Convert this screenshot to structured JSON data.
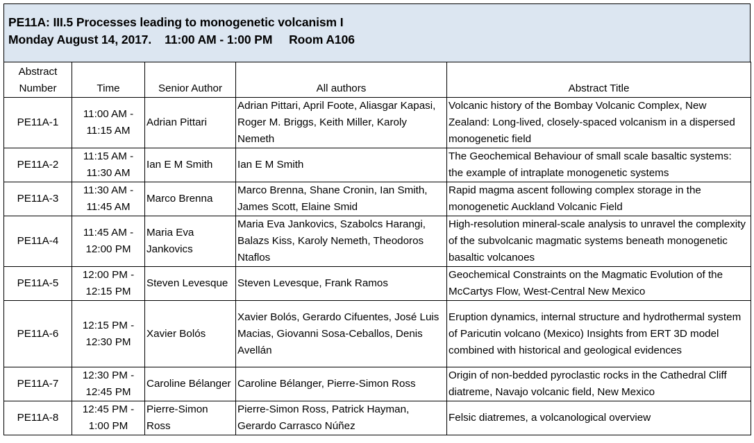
{
  "session": {
    "line1": "PE11A: III.5 Processes leading to monogenetic volcanism I",
    "line2": "Monday August 14, 2017.    11:00 AM - 1:00 PM     Room A106"
  },
  "columns": {
    "abstract_number": "Abstract Number",
    "time": "Time",
    "senior_author": "Senior Author",
    "all_authors": "All authors",
    "abstract_title": "Abstract Title"
  },
  "rows": [
    {
      "number": "PE11A-1",
      "time_start": "11:00 AM -",
      "time_end": "11:15 AM",
      "senior": "Adrian Pittari",
      "authors": "Adrian Pittari, April Foote, Aliasgar Kapasi, Roger M. Briggs, Keith Miller, Karoly Nemeth",
      "title": "Volcanic history of the Bombay Volcanic Complex, New Zealand: Long-lived, closely-spaced volcanism in a dispersed monogenetic field"
    },
    {
      "number": "PE11A-2",
      "time_start": "11:15 AM -",
      "time_end": "11:30 AM",
      "senior": "Ian E M Smith",
      "authors": "Ian E M Smith",
      "title": "The Geochemical Behaviour of small scale basaltic systems: the example of intraplate monogenetic systems"
    },
    {
      "number": "PE11A-3",
      "time_start": "11:30 AM -",
      "time_end": "11:45 AM",
      "senior": "Marco Brenna",
      "authors": "Marco Brenna, Shane Cronin, Ian Smith, James Scott, Elaine Smid",
      "title": "Rapid magma ascent following complex storage in the monogenetic Auckland Volcanic Field"
    },
    {
      "number": "PE11A-4",
      "time_start": "11:45 AM -",
      "time_end": "12:00 PM",
      "senior": "Maria Eva Jankovics",
      "authors": "Maria Eva Jankovics, Szabolcs Harangi, Balazs Kiss, Karoly Nemeth, Theodoros Ntaflos",
      "title": "High-resolution mineral-scale analysis to unravel the complexity of the subvolcanic magmatic systems beneath monogenetic basaltic volcanoes"
    },
    {
      "number": "PE11A-5",
      "time_start": "12:00 PM -",
      "time_end": "12:15 PM",
      "senior": "Steven Levesque",
      "authors": "Steven Levesque, Frank Ramos",
      "title": "Geochemical Constraints on the Magmatic Evolution of the McCartys Flow, West-Central New Mexico"
    },
    {
      "number": "PE11A-6",
      "time_start": "12:15 PM -",
      "time_end": "12:30 PM",
      "senior": "Xavier Bolós",
      "authors": "Xavier Bolós, Gerardo Cifuentes, José Luis Macias, Giovanni Sosa-Ceballos, Denis Avellán",
      "title": "Eruption dynamics, internal structure and hydrothermal system of Paricutin volcano (Mexico) Insights from ERT 3D model combined with historical and geological evidences"
    },
    {
      "number": "PE11A-7",
      "time_start": "12:30 PM -",
      "time_end": "12:45 PM",
      "senior": "Caroline Bélanger",
      "authors": "Caroline Bélanger, Pierre-Simon Ross",
      "title": "Origin of non-bedded pyroclastic rocks in the Cathedral Cliff diatreme, Navajo volcanic field, New Mexico"
    },
    {
      "number": "PE11A-8",
      "time_start": "12:45 PM -",
      "time_end": "1:00 PM",
      "senior": "Pierre-Simon Ross",
      "authors": "Pierre-Simon Ross, Patrick Hayman, Gerardo Carrasco Núñez",
      "title": "Felsic diatremes, a volcanological overview"
    }
  ]
}
